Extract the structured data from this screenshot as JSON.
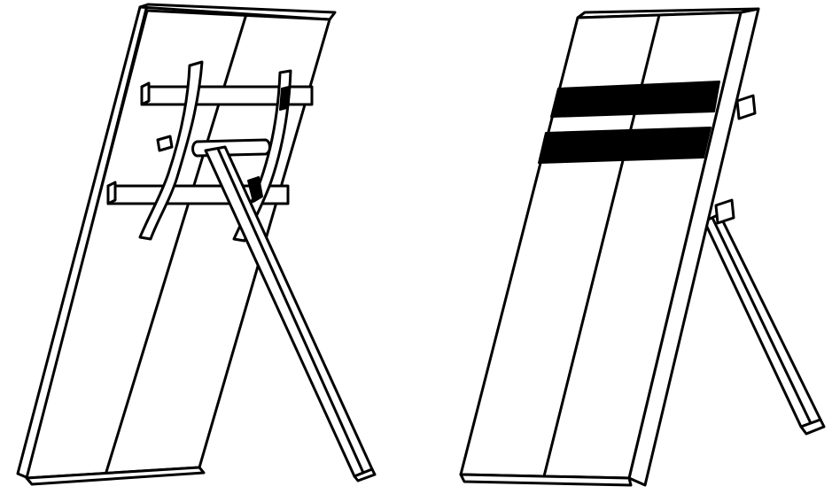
{
  "figure": {
    "panels": [
      {
        "id": "rear-view",
        "view": "back"
      },
      {
        "id": "front-view",
        "view": "front"
      }
    ],
    "colors": {
      "ink": "#000000",
      "paper": "#ffffff"
    }
  }
}
